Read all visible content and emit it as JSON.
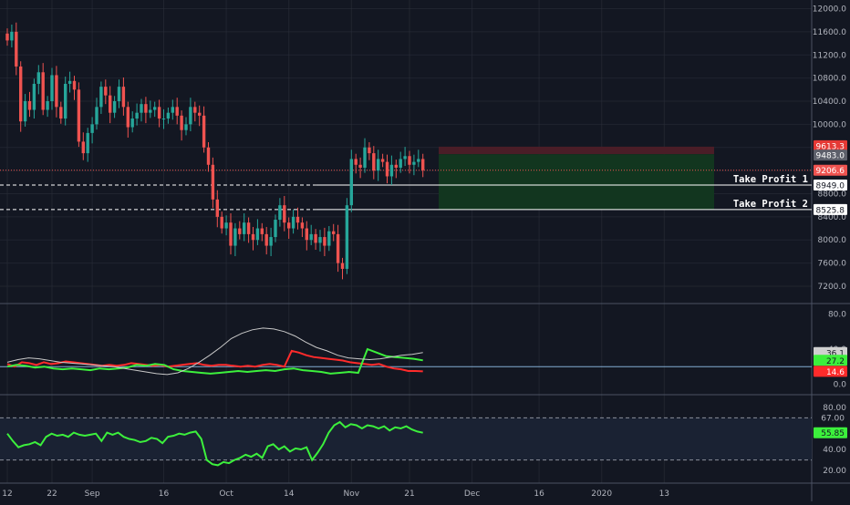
{
  "colors": {
    "background": "#131722",
    "grid": "#2a2e39",
    "axis_text": "#b2b5be",
    "candle_up": "#26a69a",
    "candle_down": "#ef5350",
    "price_line": "#ef5350",
    "tp_line": "#ffffff",
    "loss_zone": "#4a1d27",
    "profit_zone": "#12361f",
    "dmi_plus": "#3cf03c",
    "dmi_minus": "#ff2b2b",
    "adx": "#c8c8c8",
    "rsi": "#3cf03c",
    "rsi_band": "#1a2233",
    "ref_line": "#9fd3ff"
  },
  "chart_data": [
    {
      "type": "candlestick",
      "title": "",
      "ylim": [
        6900,
        12150
      ],
      "y_ticks": [
        "12000.0",
        "11600.0",
        "11200.0",
        "10800.0",
        "10400.0",
        "10000.0",
        "9600.0",
        "9200.0",
        "8800.0",
        "8400.0",
        "8000.0",
        "7600.0",
        "7200.0"
      ],
      "y_tick_values": [
        12000,
        11600,
        11200,
        10800,
        10400,
        10000,
        9600,
        9200,
        8800,
        8400,
        8000,
        7600,
        7200
      ],
      "x_ticks": [
        "12",
        "22",
        "Sep",
        "16",
        "Oct",
        "14",
        "Nov",
        "21",
        "Dec",
        "16",
        "2020",
        "13"
      ],
      "x_tick_index": [
        0,
        10,
        19,
        35,
        49,
        63,
        77,
        90,
        104,
        119,
        133,
        147
      ],
      "closes": [
        11450,
        11600,
        11000,
        10050,
        10400,
        10250,
        10700,
        10900,
        10250,
        10400,
        10850,
        10300,
        10100,
        10700,
        10750,
        10600,
        9700,
        9500,
        9850,
        10000,
        10300,
        10650,
        10500,
        10200,
        10400,
        10650,
        10300,
        9950,
        10100,
        10200,
        10350,
        10200,
        10250,
        10300,
        10100,
        10100,
        10200,
        10300,
        10150,
        9900,
        10000,
        10300,
        10200,
        10150,
        9600,
        9300,
        8700,
        8400,
        8200,
        8300,
        7900,
        8200,
        8100,
        8300,
        8100,
        8000,
        8200,
        8100,
        7900,
        8050,
        8350,
        8600,
        8300,
        8200,
        8400,
        8300,
        8200,
        8000,
        8100,
        7950,
        8050,
        7900,
        8150,
        8100,
        7600,
        7500,
        8600,
        9400,
        9300,
        9250,
        9600,
        9500,
        9200,
        9400,
        9350,
        9100,
        9300,
        9250,
        9400,
        9450,
        9300,
        9350,
        9400,
        9206.6
      ],
      "price_labels": {
        "stop": "9613.3",
        "entry": "9483.0",
        "last": "9206.6",
        "tp1": "8949.0",
        "tp2": "8525.8"
      },
      "price_levels": {
        "stop": 9613.3,
        "entry": 9483.0,
        "last": 9206.6,
        "tp1": 8949.0,
        "tp2": 8525.8
      },
      "annotations": {
        "tp1": "Take Profit 1",
        "tp2": "Take Profit 2"
      }
    },
    {
      "type": "line",
      "title": "",
      "ylim": [
        -12,
        92
      ],
      "y_ticks": [
        "80.0",
        "40.0",
        "0.0"
      ],
      "y_tick_values": [
        80,
        40,
        0
      ],
      "reference_level": 20,
      "series": [
        {
          "color_key": "dmi_minus",
          "values": [
            23,
            20,
            25,
            24,
            22,
            25,
            23,
            24,
            26,
            25,
            24,
            23,
            22,
            21,
            22,
            21,
            22,
            24,
            23,
            22,
            21,
            22,
            20,
            21,
            22,
            23,
            24,
            22,
            21,
            22,
            22,
            21,
            20,
            21,
            20,
            22,
            23,
            22,
            20,
            38,
            36,
            33,
            31,
            30,
            29,
            28,
            27,
            25,
            24,
            23,
            22,
            23,
            20,
            18,
            17,
            15,
            15,
            14.6
          ]
        },
        {
          "color_key": "dmi_plus",
          "values": [
            20,
            22,
            21,
            19,
            20,
            18,
            17,
            18,
            17,
            16,
            18,
            17,
            18,
            19,
            22,
            21,
            23,
            22,
            17,
            15,
            14,
            13,
            12,
            13,
            14,
            15,
            14,
            15,
            16,
            15,
            17,
            18,
            16,
            15,
            14,
            12,
            13,
            14,
            13,
            40,
            36,
            32,
            31,
            30,
            29,
            27.2
          ]
        },
        {
          "color_key": "adx",
          "values": [
            25,
            28,
            30,
            29,
            27,
            25,
            24,
            23,
            22,
            21,
            20,
            18,
            16,
            14,
            12,
            11,
            13,
            18,
            25,
            33,
            42,
            52,
            58,
            62,
            64,
            63,
            60,
            55,
            48,
            42,
            38,
            33,
            30,
            29,
            28,
            29,
            31,
            33,
            34,
            36.1
          ]
        }
      ],
      "value_labels": {
        "adx": "36.1",
        "dmi_plus": "27.2",
        "dmi_minus": "14.6"
      }
    },
    {
      "type": "line",
      "title": "",
      "ylim": [
        8,
        92
      ],
      "y_ticks": [
        "80.00",
        "40.00",
        "20.00"
      ],
      "y_tick_values": [
        80,
        40,
        20
      ],
      "band": [
        30,
        70
      ],
      "series": [
        {
          "color_key": "rsi",
          "values": [
            55,
            48,
            42,
            44,
            45,
            47,
            44,
            52,
            55,
            53,
            54,
            52,
            56,
            54,
            53,
            54,
            55,
            48,
            56,
            54,
            56,
            52,
            50,
            49,
            47,
            48,
            51,
            50,
            46,
            52,
            53,
            55,
            54,
            56,
            57,
            50,
            30,
            26,
            25,
            28,
            27,
            30,
            32,
            35,
            33,
            36,
            32,
            43,
            45,
            40,
            43,
            38,
            41,
            40,
            42,
            30,
            37,
            45,
            56,
            63,
            66,
            61,
            64,
            63,
            60,
            63,
            62,
            60,
            62,
            58,
            61,
            60,
            62,
            59,
            57,
            55.85
          ]
        }
      ],
      "value_labels": {
        "rsi": "55.85",
        "rsi_upper": "67.00"
      }
    }
  ]
}
